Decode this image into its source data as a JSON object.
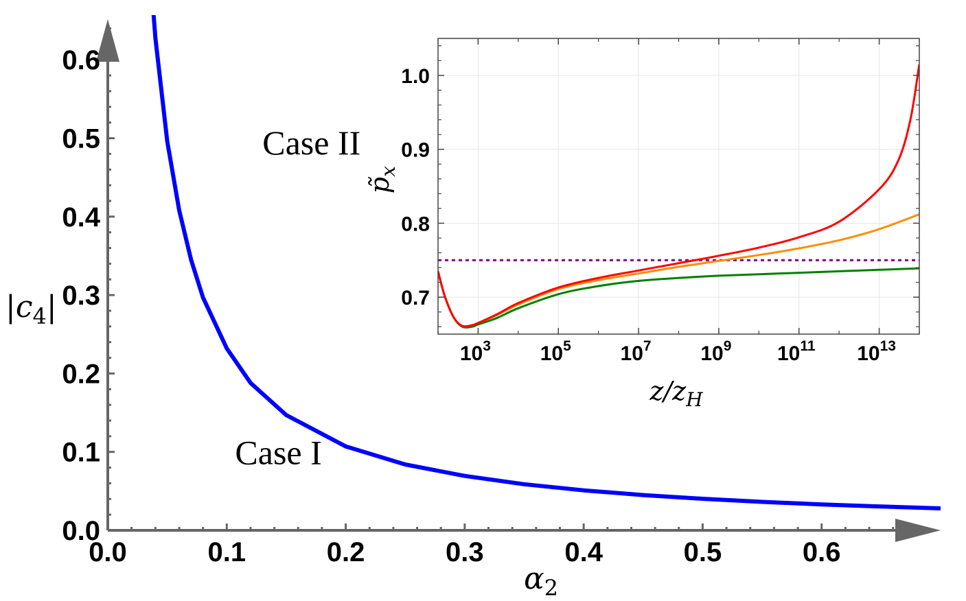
{
  "chart_data": [
    {
      "type": "line",
      "xlabel": "α",
      "xlabel_sub": "2",
      "ylabel": "|c",
      "ylabel_sub": "4",
      "ylabel_suffix": "|",
      "xlim": [
        0,
        0.7
      ],
      "ylim": [
        0,
        0.65
      ],
      "xticks": [
        "0.0",
        "0.1",
        "0.2",
        "0.3",
        "0.4",
        "0.5",
        "0.6"
      ],
      "yticks": [
        "0.0",
        "0.1",
        "0.2",
        "0.3",
        "0.4",
        "0.5",
        "0.6"
      ],
      "x_tick_values": [
        0,
        0.1,
        0.2,
        0.3,
        0.4,
        0.5,
        0.6
      ],
      "y_tick_values": [
        0,
        0.1,
        0.2,
        0.3,
        0.4,
        0.5,
        0.6
      ],
      "series": [
        {
          "color": "#0000ff",
          "x": [
            0.035,
            0.04,
            0.05,
            0.06,
            0.07,
            0.08,
            0.1,
            0.12,
            0.15,
            0.2,
            0.25,
            0.3,
            0.35,
            0.4,
            0.45,
            0.5,
            0.55,
            0.6,
            0.65,
            0.7
          ],
          "y": [
            0.726,
            0.628,
            0.496,
            0.408,
            0.345,
            0.297,
            0.232,
            0.188,
            0.147,
            0.107,
            0.084,
            0.0694,
            0.0588,
            0.051,
            0.045,
            0.0402,
            0.0363,
            0.0331,
            0.0304,
            0.028
          ]
        }
      ],
      "annotations": [
        {
          "text": "Case II",
          "x": 0.13,
          "y": 0.495
        },
        {
          "text": "Case I",
          "x": 0.107,
          "y": 0.1
        }
      ]
    },
    {
      "type": "line",
      "inset": true,
      "xscale": "log",
      "xlabel": "z/z",
      "xlabel_sub": "H",
      "ylabel": "p̃",
      "ylabel_sub": "x",
      "xlim": [
        100,
        100000000000000.0
      ],
      "ylim": [
        0.65,
        1.05
      ],
      "grid": true,
      "xticks": [
        {
          "base": "10",
          "exp": "3",
          "value": 1000
        },
        {
          "base": "10",
          "exp": "5",
          "value": 100000
        },
        {
          "base": "10",
          "exp": "7",
          "value": 10000000
        },
        {
          "base": "10",
          "exp": "9",
          "value": 1000000000
        },
        {
          "base": "10",
          "exp": "11",
          "value": 100000000000
        },
        {
          "base": "10",
          "exp": "13",
          "value": 10000000000000
        }
      ],
      "yticks": [
        "0.7",
        "0.8",
        "0.9",
        "1.0"
      ],
      "y_tick_values": [
        0.7,
        0.8,
        0.9,
        1.0
      ],
      "series": [
        {
          "color": "#800080",
          "dashed": true,
          "x": [
            100,
            100000000000000.0
          ],
          "y": [
            0.75,
            0.75
          ]
        },
        {
          "color": "#008000",
          "x": [
            100,
            150,
            250,
            400,
            700,
            1000,
            3000,
            10000,
            100000,
            1000000,
            10000000,
            100000000,
            1000000000,
            10000000000,
            100000000000,
            1000000000000,
            10000000000000,
            100000000000000.0
          ],
          "y": [
            0.735,
            0.7,
            0.672,
            0.66,
            0.66,
            0.663,
            0.672,
            0.685,
            0.704,
            0.715,
            0.722,
            0.726,
            0.729,
            0.731,
            0.733,
            0.735,
            0.737,
            0.739
          ]
        },
        {
          "color": "#ff8c00",
          "x": [
            100,
            150,
            250,
            400,
            700,
            1000,
            3000,
            10000,
            100000,
            1000000,
            10000000,
            100000000,
            1000000000,
            10000000000,
            100000000000,
            1000000000000,
            10000000000000,
            100000000000000.0
          ],
          "y": [
            0.735,
            0.7,
            0.672,
            0.661,
            0.662,
            0.665,
            0.676,
            0.69,
            0.711,
            0.723,
            0.732,
            0.741,
            0.749,
            0.757,
            0.766,
            0.777,
            0.792,
            0.812
          ]
        },
        {
          "color": "#ff0000",
          "x": [
            100,
            150,
            250,
            400,
            700,
            1000,
            3000,
            10000,
            100000,
            1000000,
            10000000,
            100000000,
            1000000000,
            10000000000,
            100000000000,
            1000000000000,
            10000000000000,
            30000000000000,
            60000000000000,
            100000000000000.0
          ],
          "y": [
            0.735,
            0.7,
            0.672,
            0.661,
            0.662,
            0.665,
            0.677,
            0.692,
            0.713,
            0.726,
            0.736,
            0.746,
            0.756,
            0.767,
            0.781,
            0.802,
            0.846,
            0.885,
            0.94,
            1.015
          ]
        }
      ]
    }
  ]
}
